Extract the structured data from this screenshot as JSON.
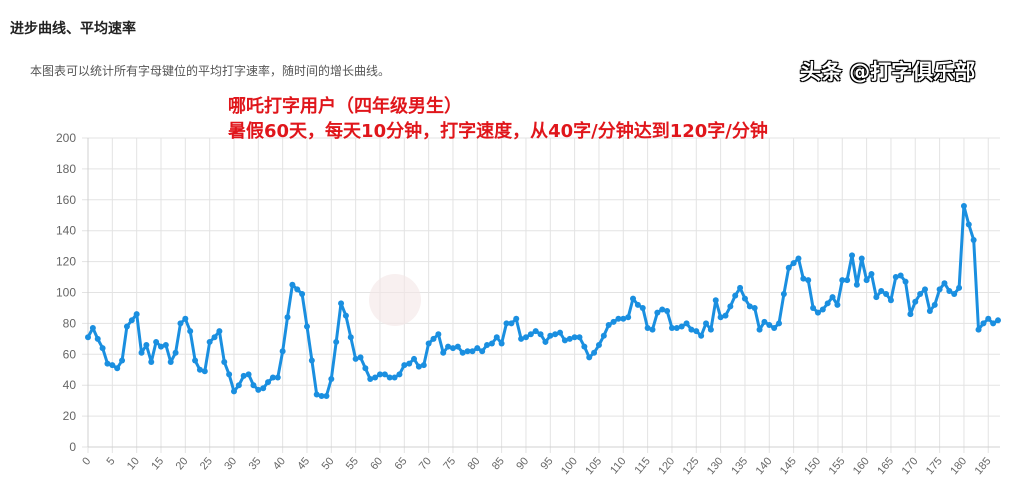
{
  "header": {
    "title": "进步曲线、平均速率",
    "description": "本图表可以统计所有字母键位的平均打字速率，随时间的增长曲线。"
  },
  "annotation": {
    "line1": "哪吒打字用户（四年级男生）",
    "line2": "暑假60天，每天10分钟，打字速度，从40字/分钟达到120字/分钟"
  },
  "watermark": "头条 @打字俱乐部",
  "chart_data": {
    "type": "line",
    "title": "",
    "xlabel": "",
    "ylabel": "",
    "ylim": [
      0,
      200
    ],
    "yticks": [
      0,
      20,
      40,
      60,
      80,
      100,
      120,
      140,
      160,
      180,
      200
    ],
    "xtick_step": 5,
    "grid": true,
    "color": "#1a8fe0",
    "y": [
      71,
      77,
      70,
      64,
      54,
      53,
      51,
      56,
      78,
      82,
      86,
      61,
      66,
      55,
      68,
      65,
      66,
      55,
      61,
      80,
      83,
      75,
      56,
      50,
      49,
      68,
      71,
      75,
      55,
      47,
      36,
      40,
      46,
      47,
      40,
      37,
      38,
      42,
      45,
      45,
      62,
      84,
      105,
      102,
      99,
      78,
      56,
      34,
      33,
      33,
      44,
      68,
      93,
      85,
      71,
      57,
      58,
      51,
      44,
      45,
      47,
      47,
      45,
      45,
      47,
      53,
      54,
      57,
      52,
      53,
      67,
      70,
      73,
      61,
      65,
      64,
      65,
      61,
      62,
      62,
      64,
      62,
      66,
      67,
      71,
      67,
      80,
      80,
      83,
      70,
      71,
      73,
      75,
      73,
      68,
      72,
      73,
      74,
      69,
      70,
      71,
      71,
      65,
      58,
      61,
      66,
      72,
      79,
      81,
      83,
      83,
      84,
      96,
      92,
      90,
      77,
      76,
      87,
      89,
      88,
      77,
      77,
      78,
      80,
      76,
      75,
      72,
      80,
      76,
      95,
      84,
      85,
      91,
      98,
      103,
      96,
      91,
      90,
      76,
      81,
      79,
      77,
      80,
      99,
      116,
      119,
      122,
      109,
      108,
      90,
      87,
      89,
      93,
      97,
      92,
      108,
      108,
      124,
      105,
      122,
      108,
      112,
      97,
      101,
      99,
      95,
      110,
      111,
      107,
      86,
      94,
      99,
      102,
      88,
      92,
      102,
      106,
      101,
      99,
      103,
      156,
      144,
      134,
      76,
      80,
      83,
      80,
      82
    ]
  }
}
